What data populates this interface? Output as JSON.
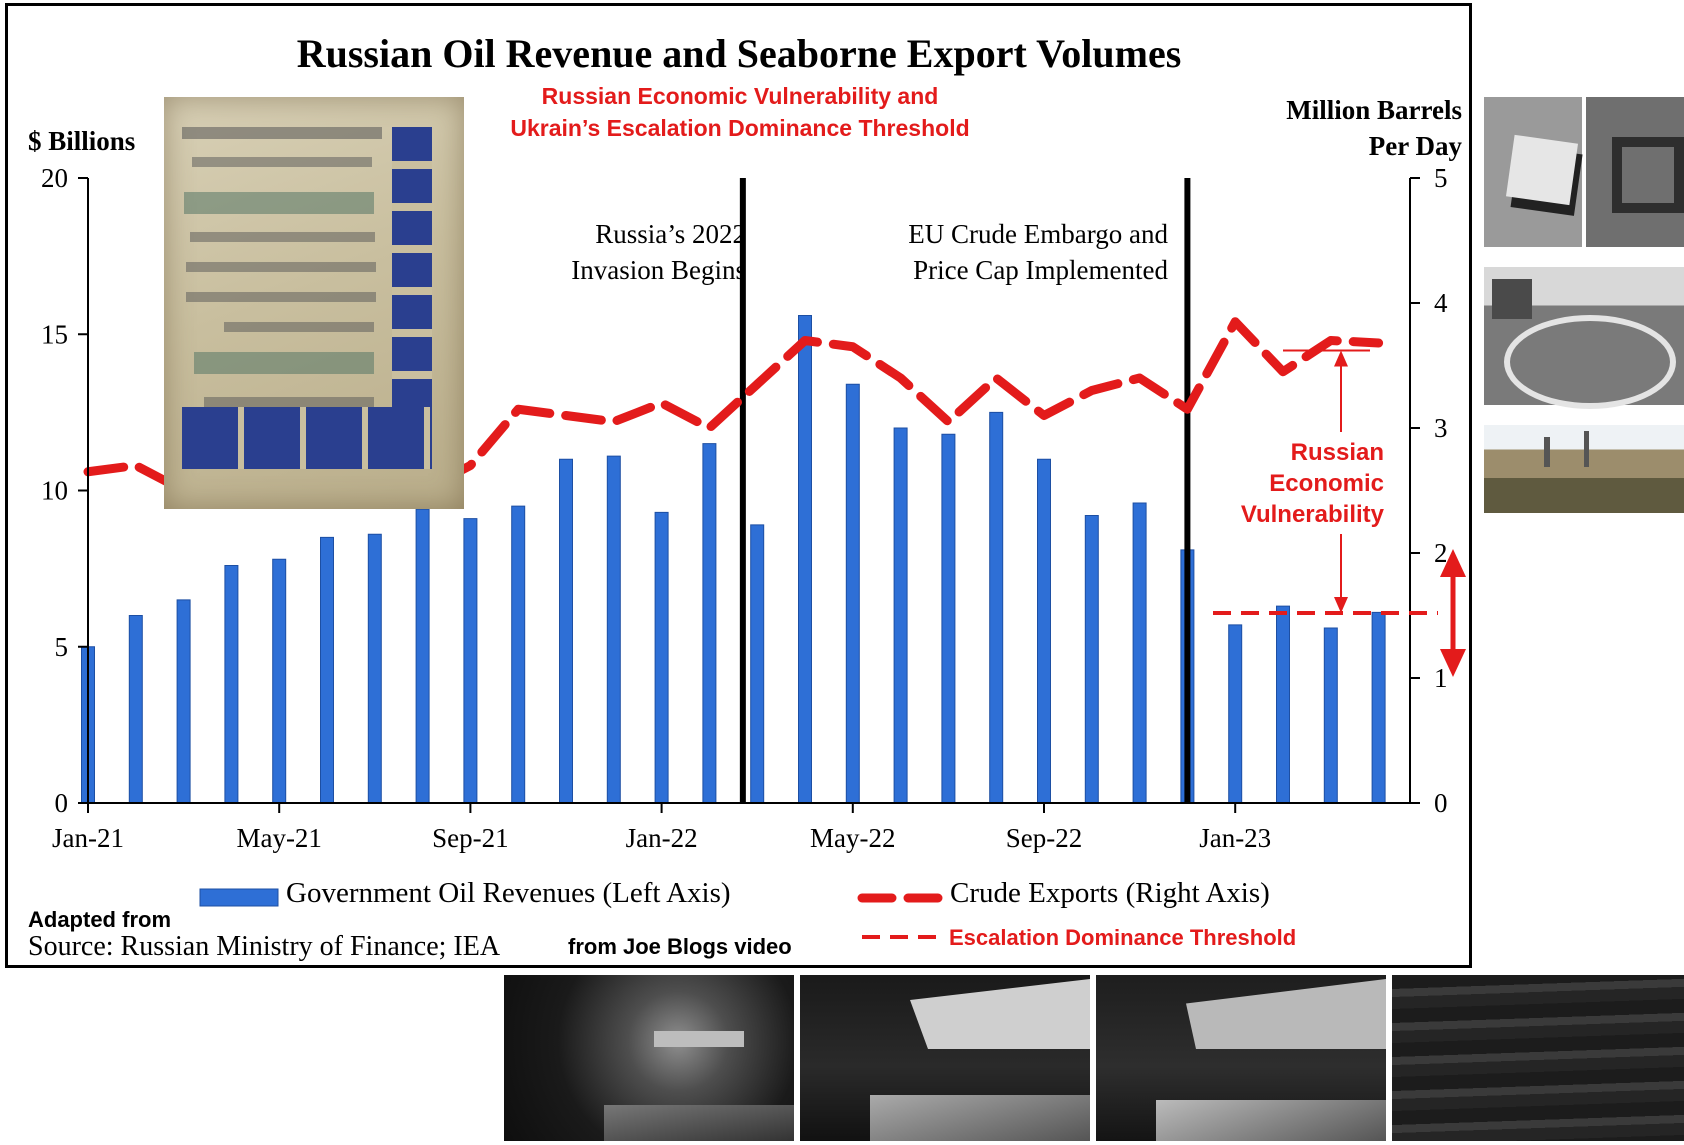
{
  "chart_data": {
    "type": "bar+line",
    "title": "Russian Oil Revenue and Seaborne Export Volumes",
    "subtitle_lines": [
      "Russian Economic Vulnerability and",
      "Ukrain’s Escalation Dominance Threshold"
    ],
    "ylabel_left": "$ Billions",
    "ylabel_right_lines": [
      "Million  Barrels",
      "Per Day"
    ],
    "ylim_left": [
      0,
      20
    ],
    "ylim_right": [
      0,
      5
    ],
    "yticks_left": [
      "0",
      "5",
      "10",
      "15",
      "20"
    ],
    "yticks_right": [
      "0",
      "1",
      "2",
      "3",
      "4",
      "5"
    ],
    "xtick_labels": [
      "Jan-21",
      "May-21",
      "Sep-21",
      "Jan-22",
      "May-22",
      "Sep-22",
      "Jan-23"
    ],
    "categories": [
      "Jan-21",
      "Feb-21",
      "Mar-21",
      "Apr-21",
      "May-21",
      "Jun-21",
      "Jul-21",
      "Aug-21",
      "Sep-21",
      "Oct-21",
      "Nov-21",
      "Dec-21",
      "Jan-22",
      "Feb-22",
      "Mar-22",
      "Apr-22",
      "May-22",
      "Jun-22",
      "Jul-22",
      "Aug-22",
      "Sep-22",
      "Oct-22",
      "Nov-22",
      "Dec-22",
      "Jan-23",
      "Feb-23",
      "Mar-23",
      "Apr-23"
    ],
    "series": [
      {
        "name": "Government Oil Revenues (Left Axis)",
        "type": "bar",
        "axis": "left",
        "color": "#2e6fd6",
        "values": [
          5.0,
          6.0,
          6.5,
          7.6,
          7.8,
          8.5,
          8.6,
          9.4,
          9.1,
          9.5,
          11.0,
          11.1,
          9.3,
          11.5,
          8.9,
          15.6,
          13.4,
          12.0,
          11.8,
          12.5,
          11.0,
          9.2,
          9.6,
          8.1,
          5.7,
          6.3,
          5.6,
          6.1
        ]
      },
      {
        "name": "Crude Exports (Right Axis)",
        "type": "line",
        "axis": "right",
        "style": "dashed",
        "color": "#e31b1b",
        "values": [
          2.65,
          2.7,
          2.5,
          2.4,
          2.45,
          2.5,
          2.55,
          2.5,
          2.7,
          3.15,
          3.1,
          3.05,
          3.2,
          3.0,
          3.35,
          3.7,
          3.65,
          3.4,
          3.05,
          3.4,
          3.1,
          3.3,
          3.4,
          3.15,
          3.85,
          3.45,
          3.7,
          3.68
        ]
      }
    ],
    "threshold": {
      "name": "Escalation Dominance Threshold",
      "axis": "right",
      "value": 1.52,
      "color": "#e31b1b"
    },
    "top_marker_value": 3.62,
    "events": [
      {
        "at_index": 13.7,
        "lines": [
          "Russia’s 2022",
          "Invasion Begins"
        ]
      },
      {
        "at_index": 23.0,
        "lines": [
          "EU Crude Embargo and",
          "Price Cap Implemented"
        ]
      }
    ],
    "vulnerability_label_lines": [
      "Russian",
      "Economic",
      "Vulnerability"
    ]
  },
  "legend": {
    "bar_label": "Government Oil Revenues (Left Axis)",
    "line_label": "Crude Exports (Right Axis)",
    "threshold_label": "Escalation Dominance Threshold"
  },
  "notes": {
    "adapted": "Adapted from",
    "source": "Source: Russian Ministry of Finance; IEA",
    "video": "from Joe Blogs video"
  },
  "photos": {
    "manuscript": "manuscript-image",
    "right": [
      "satellite-image",
      "ruins-image",
      "construction-image"
    ],
    "bottom": [
      "night-tanker-image-1",
      "night-tanker-image-2",
      "night-tanker-image-3",
      "blurred-sea-image"
    ]
  }
}
